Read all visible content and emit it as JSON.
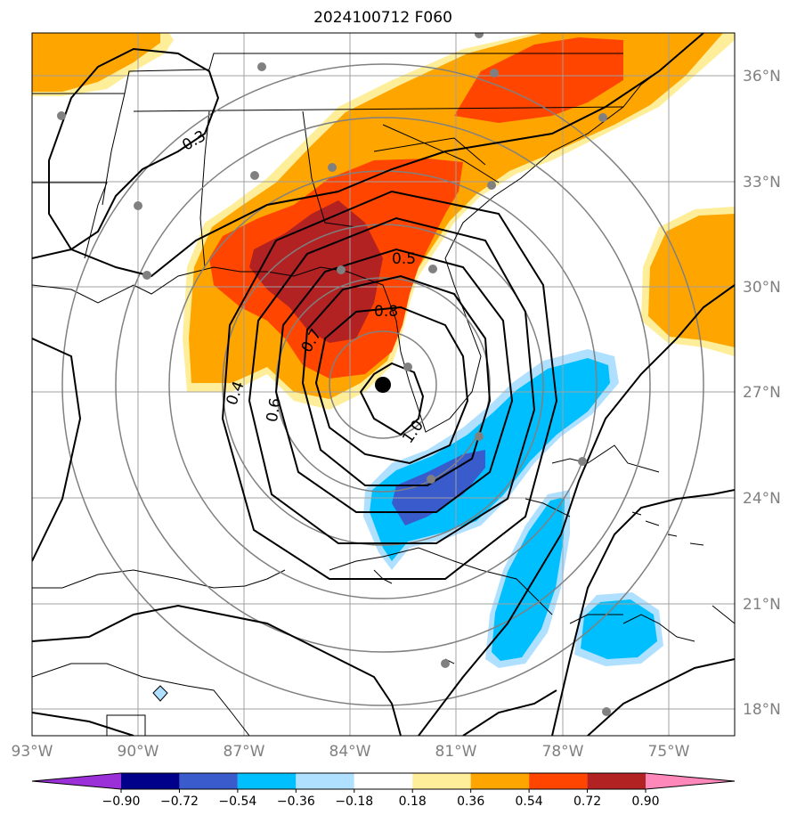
{
  "title": "2024100712 F060",
  "lat_labels": [
    "36°N",
    "33°N",
    "30°N",
    "27°N",
    "24°N",
    "21°N",
    "18°N"
  ],
  "lon_labels": [
    "93°W",
    "90°W",
    "87°W",
    "84°W",
    "81°W",
    "78°W",
    "75°W"
  ],
  "contour_labels": [
    "0.3",
    "0.4",
    "0.5",
    "0.6",
    "0.7",
    "0.8",
    "1.0"
  ],
  "colorbar": {
    "ticks": [
      "−0.90",
      "−0.72",
      "−0.54",
      "−0.36",
      "−0.18",
      "0.18",
      "0.36",
      "0.54",
      "0.72",
      "0.90"
    ],
    "colors": [
      "#9b30d9",
      "#00008b",
      "#3a5bcc",
      "#00bfff",
      "#b0e0ff",
      "#ffffff",
      "#ffee99",
      "#ffa500",
      "#ff4500",
      "#b22222",
      "#ff88bb"
    ]
  },
  "colors": {
    "orange": "#ffa500",
    "red_orange": "#ff4500",
    "dark_red": "#b22222",
    "light_yellow": "#ffee99",
    "blue": "#00bfff",
    "light_blue": "#b0e0ff",
    "royal_blue": "#3a5bcc",
    "grid": "#a0a0a0",
    "range_rings": "#808080",
    "stations": "#808080"
  },
  "storm_center_marker": "filled-black-circle"
}
